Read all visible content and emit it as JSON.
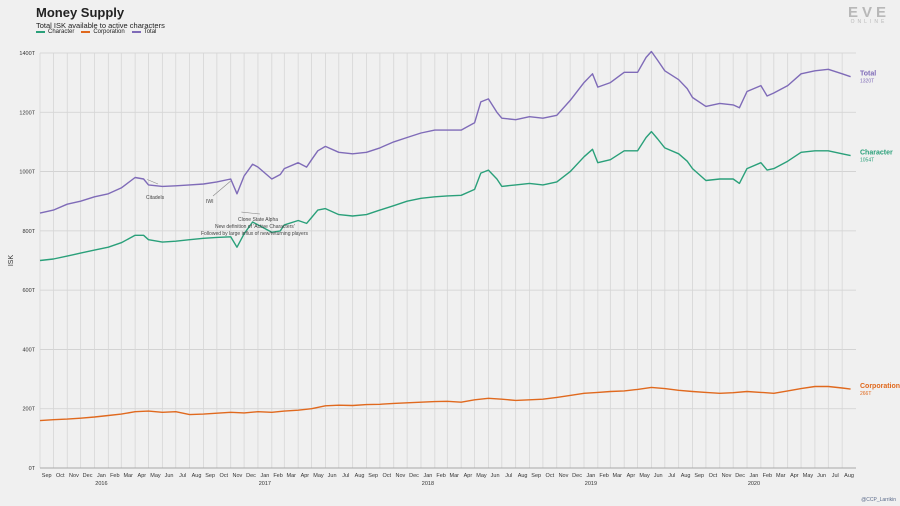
{
  "header": {
    "title": "Money Supply",
    "subtitle": "Total ISK available to active characters"
  },
  "logo": {
    "main": "EVE",
    "sub": "ONLINE"
  },
  "credit": "@CCP_Larrikin",
  "colors": {
    "character": "#2aa07a",
    "corporation": "#e0691e",
    "total": "#7f6bb8"
  },
  "chart_data": {
    "type": "line",
    "ylabel": "ISK",
    "xlabel": "",
    "ylim": [
      0,
      1400
    ],
    "yticks": [
      0,
      200,
      400,
      600,
      800,
      1000,
      1200,
      1400
    ],
    "ytick_labels": [
      "0T",
      "200T",
      "400T",
      "600T",
      "800T",
      "1000T",
      "1200T",
      "1400T"
    ],
    "x_start": "2015-09",
    "x_end": "2020-08",
    "month_labels": [
      "Sep",
      "Oct",
      "Nov",
      "Dec",
      "Jan",
      "Feb",
      "Mar",
      "Apr",
      "May",
      "Jun",
      "Jul",
      "Aug",
      "Sep",
      "Oct",
      "Nov",
      "Dec",
      "Jan",
      "Feb",
      "Mar",
      "Apr",
      "May",
      "Jun",
      "Jul",
      "Aug",
      "Sep",
      "Oct",
      "Nov",
      "Dec",
      "Jan",
      "Feb",
      "Mar",
      "Apr",
      "May",
      "Jun",
      "Jul",
      "Aug",
      "Sep",
      "Oct",
      "Nov",
      "Dec",
      "Jan",
      "Feb",
      "Mar",
      "Apr",
      "May",
      "Jun",
      "Jul",
      "Aug",
      "Sep",
      "Oct",
      "Nov",
      "Dec",
      "Jan",
      "Feb",
      "Mar",
      "Apr",
      "May",
      "Jun",
      "Jul",
      "Aug"
    ],
    "year_labels": [
      {
        "label": "2016",
        "month": "2016-01"
      },
      {
        "label": "2017",
        "month": "2017-01"
      },
      {
        "label": "2018",
        "month": "2018-01"
      },
      {
        "label": "2019",
        "month": "2019-01"
      },
      {
        "label": "2020",
        "month": "2020-01"
      }
    ],
    "grid": true,
    "series": [
      {
        "name": "Total",
        "key": "total",
        "end_label": "Total",
        "end_value": "1320T",
        "points": [
          [
            "2015-09-01",
            860
          ],
          [
            "2015-10-01",
            870
          ],
          [
            "2015-11-01",
            890
          ],
          [
            "2015-12-01",
            900
          ],
          [
            "2016-01-01",
            915
          ],
          [
            "2016-02-01",
            925
          ],
          [
            "2016-03-01",
            945
          ],
          [
            "2016-04-01",
            980
          ],
          [
            "2016-04-20",
            975
          ],
          [
            "2016-05-01",
            955
          ],
          [
            "2016-06-01",
            950
          ],
          [
            "2016-07-01",
            952
          ],
          [
            "2016-08-01",
            955
          ],
          [
            "2016-09-01",
            958
          ],
          [
            "2016-10-01",
            965
          ],
          [
            "2016-11-01",
            975
          ],
          [
            "2016-11-15",
            925
          ],
          [
            "2016-12-01",
            985
          ],
          [
            "2016-12-20",
            1025
          ],
          [
            "2017-01-01",
            1015
          ],
          [
            "2017-02-01",
            975
          ],
          [
            "2017-02-20",
            990
          ],
          [
            "2017-03-01",
            1010
          ],
          [
            "2017-04-01",
            1030
          ],
          [
            "2017-04-20",
            1015
          ],
          [
            "2017-05-01",
            1040
          ],
          [
            "2017-05-15",
            1070
          ],
          [
            "2017-06-01",
            1085
          ],
          [
            "2017-07-01",
            1065
          ],
          [
            "2017-08-01",
            1060
          ],
          [
            "2017-09-01",
            1065
          ],
          [
            "2017-10-01",
            1080
          ],
          [
            "2017-11-01",
            1100
          ],
          [
            "2017-12-01",
            1115
          ],
          [
            "2018-01-01",
            1130
          ],
          [
            "2018-02-01",
            1140
          ],
          [
            "2018-03-01",
            1140
          ],
          [
            "2018-04-01",
            1140
          ],
          [
            "2018-05-01",
            1165
          ],
          [
            "2018-05-15",
            1235
          ],
          [
            "2018-06-01",
            1245
          ],
          [
            "2018-06-20",
            1200
          ],
          [
            "2018-07-01",
            1180
          ],
          [
            "2018-08-01",
            1175
          ],
          [
            "2018-09-01",
            1185
          ],
          [
            "2018-10-01",
            1180
          ],
          [
            "2018-11-01",
            1190
          ],
          [
            "2018-12-01",
            1240
          ],
          [
            "2019-01-01",
            1300
          ],
          [
            "2019-01-20",
            1330
          ],
          [
            "2019-02-01",
            1285
          ],
          [
            "2019-03-01",
            1300
          ],
          [
            "2019-04-01",
            1335
          ],
          [
            "2019-05-01",
            1335
          ],
          [
            "2019-05-20",
            1385
          ],
          [
            "2019-06-01",
            1405
          ],
          [
            "2019-06-15",
            1375
          ],
          [
            "2019-07-01",
            1340
          ],
          [
            "2019-08-01",
            1310
          ],
          [
            "2019-08-20",
            1280
          ],
          [
            "2019-09-01",
            1250
          ],
          [
            "2019-10-01",
            1220
          ],
          [
            "2019-11-01",
            1230
          ],
          [
            "2019-12-01",
            1225
          ],
          [
            "2019-12-15",
            1215
          ],
          [
            "2020-01-01",
            1270
          ],
          [
            "2020-02-01",
            1290
          ],
          [
            "2020-02-15",
            1255
          ],
          [
            "2020-03-01",
            1265
          ],
          [
            "2020-04-01",
            1290
          ],
          [
            "2020-05-01",
            1330
          ],
          [
            "2020-06-01",
            1340
          ],
          [
            "2020-07-01",
            1345
          ],
          [
            "2020-08-01",
            1330
          ],
          [
            "2020-08-20",
            1320
          ]
        ]
      },
      {
        "name": "Character",
        "key": "character",
        "end_label": "Character",
        "end_value": "1054T",
        "points": [
          [
            "2015-09-01",
            700
          ],
          [
            "2015-10-01",
            705
          ],
          [
            "2015-11-01",
            715
          ],
          [
            "2015-12-01",
            725
          ],
          [
            "2016-01-01",
            735
          ],
          [
            "2016-02-01",
            745
          ],
          [
            "2016-03-01",
            760
          ],
          [
            "2016-04-01",
            785
          ],
          [
            "2016-04-20",
            785
          ],
          [
            "2016-05-01",
            770
          ],
          [
            "2016-06-01",
            762
          ],
          [
            "2016-07-01",
            765
          ],
          [
            "2016-08-01",
            770
          ],
          [
            "2016-09-01",
            775
          ],
          [
            "2016-10-01",
            778
          ],
          [
            "2016-11-01",
            780
          ],
          [
            "2016-11-15",
            745
          ],
          [
            "2016-12-01",
            790
          ],
          [
            "2016-12-20",
            830
          ],
          [
            "2017-01-01",
            820
          ],
          [
            "2017-02-01",
            795
          ],
          [
            "2017-02-20",
            800
          ],
          [
            "2017-03-01",
            820
          ],
          [
            "2017-04-01",
            835
          ],
          [
            "2017-04-20",
            825
          ],
          [
            "2017-05-01",
            845
          ],
          [
            "2017-05-15",
            870
          ],
          [
            "2017-06-01",
            875
          ],
          [
            "2017-07-01",
            855
          ],
          [
            "2017-08-01",
            850
          ],
          [
            "2017-09-01",
            855
          ],
          [
            "2017-10-01",
            870
          ],
          [
            "2017-11-01",
            885
          ],
          [
            "2017-12-01",
            900
          ],
          [
            "2018-01-01",
            910
          ],
          [
            "2018-02-01",
            915
          ],
          [
            "2018-03-01",
            918
          ],
          [
            "2018-04-01",
            920
          ],
          [
            "2018-05-01",
            940
          ],
          [
            "2018-05-15",
            995
          ],
          [
            "2018-06-01",
            1005
          ],
          [
            "2018-06-20",
            975
          ],
          [
            "2018-07-01",
            950
          ],
          [
            "2018-08-01",
            955
          ],
          [
            "2018-09-01",
            960
          ],
          [
            "2018-10-01",
            955
          ],
          [
            "2018-11-01",
            965
          ],
          [
            "2018-12-01",
            1000
          ],
          [
            "2019-01-01",
            1050
          ],
          [
            "2019-01-20",
            1075
          ],
          [
            "2019-02-01",
            1030
          ],
          [
            "2019-03-01",
            1040
          ],
          [
            "2019-04-01",
            1070
          ],
          [
            "2019-05-01",
            1070
          ],
          [
            "2019-05-20",
            1115
          ],
          [
            "2019-06-01",
            1135
          ],
          [
            "2019-06-15",
            1110
          ],
          [
            "2019-07-01",
            1080
          ],
          [
            "2019-08-01",
            1060
          ],
          [
            "2019-08-20",
            1035
          ],
          [
            "2019-09-01",
            1010
          ],
          [
            "2019-10-01",
            970
          ],
          [
            "2019-11-01",
            975
          ],
          [
            "2019-12-01",
            975
          ],
          [
            "2019-12-15",
            960
          ],
          [
            "2020-01-01",
            1010
          ],
          [
            "2020-02-01",
            1030
          ],
          [
            "2020-02-15",
            1005
          ],
          [
            "2020-03-01",
            1010
          ],
          [
            "2020-04-01",
            1035
          ],
          [
            "2020-05-01",
            1065
          ],
          [
            "2020-06-01",
            1070
          ],
          [
            "2020-07-01",
            1070
          ],
          [
            "2020-08-01",
            1060
          ],
          [
            "2020-08-20",
            1054
          ]
        ]
      },
      {
        "name": "Corporation",
        "key": "corporation",
        "end_label": "Corporation",
        "end_value": "266T",
        "points": [
          [
            "2015-09-01",
            160
          ],
          [
            "2015-10-01",
            163
          ],
          [
            "2015-11-01",
            165
          ],
          [
            "2015-12-01",
            168
          ],
          [
            "2016-01-01",
            172
          ],
          [
            "2016-02-01",
            177
          ],
          [
            "2016-03-01",
            182
          ],
          [
            "2016-04-01",
            190
          ],
          [
            "2016-05-01",
            192
          ],
          [
            "2016-06-01",
            188
          ],
          [
            "2016-07-01",
            190
          ],
          [
            "2016-08-01",
            180
          ],
          [
            "2016-09-01",
            182
          ],
          [
            "2016-10-01",
            185
          ],
          [
            "2016-11-01",
            188
          ],
          [
            "2016-12-01",
            186
          ],
          [
            "2017-01-01",
            190
          ],
          [
            "2017-02-01",
            188
          ],
          [
            "2017-03-01",
            192
          ],
          [
            "2017-04-01",
            195
          ],
          [
            "2017-05-01",
            200
          ],
          [
            "2017-06-01",
            210
          ],
          [
            "2017-07-01",
            212
          ],
          [
            "2017-08-01",
            211
          ],
          [
            "2017-09-01",
            214
          ],
          [
            "2017-10-01",
            215
          ],
          [
            "2017-11-01",
            218
          ],
          [
            "2017-12-01",
            220
          ],
          [
            "2018-01-01",
            222
          ],
          [
            "2018-02-01",
            224
          ],
          [
            "2018-03-01",
            225
          ],
          [
            "2018-04-01",
            222
          ],
          [
            "2018-05-01",
            230
          ],
          [
            "2018-06-01",
            235
          ],
          [
            "2018-07-01",
            232
          ],
          [
            "2018-08-01",
            228
          ],
          [
            "2018-09-01",
            230
          ],
          [
            "2018-10-01",
            232
          ],
          [
            "2018-11-01",
            238
          ],
          [
            "2018-12-01",
            245
          ],
          [
            "2019-01-01",
            252
          ],
          [
            "2019-02-01",
            255
          ],
          [
            "2019-03-01",
            258
          ],
          [
            "2019-04-01",
            260
          ],
          [
            "2019-05-01",
            265
          ],
          [
            "2019-06-01",
            272
          ],
          [
            "2019-07-01",
            268
          ],
          [
            "2019-08-01",
            262
          ],
          [
            "2019-09-01",
            258
          ],
          [
            "2019-10-01",
            255
          ],
          [
            "2019-11-01",
            252
          ],
          [
            "2019-12-01",
            254
          ],
          [
            "2020-01-01",
            258
          ],
          [
            "2020-02-01",
            255
          ],
          [
            "2020-03-01",
            252
          ],
          [
            "2020-04-01",
            260
          ],
          [
            "2020-05-01",
            268
          ],
          [
            "2020-06-01",
            275
          ],
          [
            "2020-07-01",
            275
          ],
          [
            "2020-08-01",
            270
          ],
          [
            "2020-08-20",
            266
          ]
        ]
      }
    ],
    "annotations": [
      {
        "text": "Citadels",
        "date": "2016-04-28",
        "value": 980
      },
      {
        "text": "IWI",
        "date": "2016-11-01",
        "value": 975
      },
      {
        "text": "Clone State Alpha",
        "date": "2016-11-25",
        "value": 870
      },
      {
        "text": "New definition of 'Active Characters'",
        "date": "2016-11-25",
        "value": 870
      },
      {
        "text": "Followed by large influx of new/returning players",
        "date": "2016-11-25",
        "value": 870
      }
    ]
  }
}
